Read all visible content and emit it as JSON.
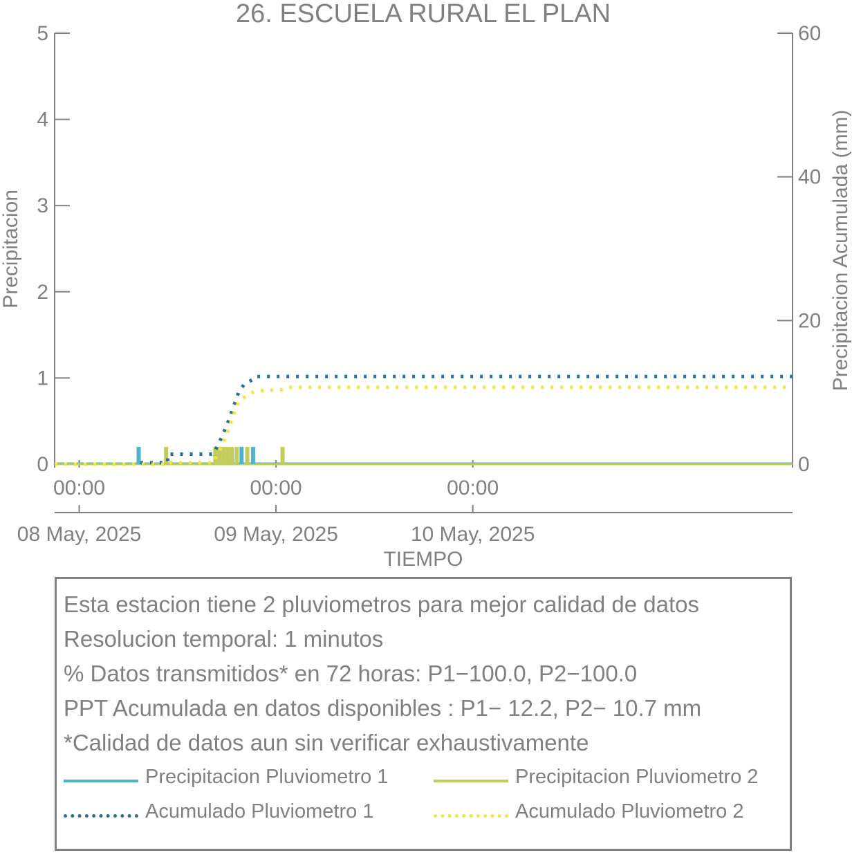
{
  "chart_data": {
    "type": "bar",
    "title": "26. ESCUELA RURAL EL PLAN",
    "xlabel": "TIEMPO",
    "ylabel_left": "Precipitacion",
    "ylabel_right": "Precipitacion Acumulada (mm)",
    "ylim_left": [
      0,
      5
    ],
    "ylim_right": [
      0,
      60
    ],
    "yticks_left": [
      "0",
      "1",
      "2",
      "3",
      "4",
      "5"
    ],
    "yticks_right": [
      "0",
      "20",
      "40",
      "60"
    ],
    "xlim_hours": [
      -3,
      87
    ],
    "xticks": [
      {
        "hour": 0,
        "time": "00:00",
        "date": "08 May, 2025"
      },
      {
        "hour": 24,
        "time": "00:00",
        "date": "09 May, 2025"
      },
      {
        "hour": 48,
        "time": "00:00",
        "date": "10 May, 2025"
      }
    ],
    "grid": false,
    "series": [
      {
        "name": "Precipitacion Pluviometro 1",
        "kind": "bar",
        "axis": "left",
        "color": "#4cb3c8",
        "points": [
          [
            7.25,
            0.2
          ],
          [
            19.8,
            0.2
          ],
          [
            21.2,
            0.2
          ]
        ]
      },
      {
        "name": "Precipitacion Pluviometro 2",
        "kind": "bar",
        "axis": "left",
        "color": "#c2cc5a",
        "points": [
          [
            10.6,
            0.2
          ],
          [
            16.6,
            0.2
          ],
          [
            17.1,
            0.2
          ],
          [
            17.6,
            0.2
          ],
          [
            18.1,
            0.2
          ],
          [
            18.6,
            0.2
          ],
          [
            19.2,
            0.2
          ],
          [
            20.5,
            0.2
          ],
          [
            24.8,
            0.2
          ]
        ]
      },
      {
        "name": "Acumulado Pluviometro 1",
        "kind": "step",
        "axis": "right",
        "color": "#2e6e8e",
        "points": [
          [
            -3,
            0
          ],
          [
            7.25,
            0
          ],
          [
            7.25,
            0.2
          ],
          [
            10.8,
            0.2
          ],
          [
            10.8,
            1.4
          ],
          [
            16.4,
            1.4
          ],
          [
            16.8,
            2.4
          ],
          [
            17.4,
            3.8
          ],
          [
            18.0,
            5.4
          ],
          [
            18.5,
            7.0
          ],
          [
            19.0,
            8.6
          ],
          [
            19.5,
            10.2
          ],
          [
            20.2,
            11.2
          ],
          [
            21.2,
            11.8
          ],
          [
            21.5,
            12.2
          ],
          [
            87,
            12.2
          ]
        ]
      },
      {
        "name": "Acumulado Pluviometro 2",
        "kind": "step",
        "axis": "right",
        "color": "#f2e63a",
        "points": [
          [
            -3,
            0
          ],
          [
            10.6,
            0
          ],
          [
            10.6,
            0.2
          ],
          [
            16.4,
            0.2
          ],
          [
            16.8,
            1.2
          ],
          [
            17.4,
            2.6
          ],
          [
            18.0,
            4.2
          ],
          [
            18.5,
            5.8
          ],
          [
            19.0,
            7.4
          ],
          [
            19.5,
            8.8
          ],
          [
            20.5,
            9.6
          ],
          [
            21.5,
            10.2
          ],
          [
            24.8,
            10.4
          ],
          [
            25.5,
            10.7
          ],
          [
            87,
            10.7
          ]
        ]
      }
    ]
  },
  "info": {
    "line1": "Esta estacion tiene 2 pluviometros para mejor calidad de datos",
    "line2": "Resolucion temporal: 1 minutos",
    "line3": "% Datos transmitidos* en 72 horas: P1−100.0, P2−100.0",
    "line4": "PPT Acumulada en datos disponibles : P1− 12.2, P2− 10.7 mm",
    "line5": "*Calidad de datos aun sin verificar exhaustivamente"
  },
  "legend": {
    "p1": "Precipitacion Pluviometro 1",
    "p2": "Precipitacion Pluviometro 2",
    "a1": "Acumulado Pluviometro 1",
    "a2": "Acumulado Pluviometro 2"
  }
}
